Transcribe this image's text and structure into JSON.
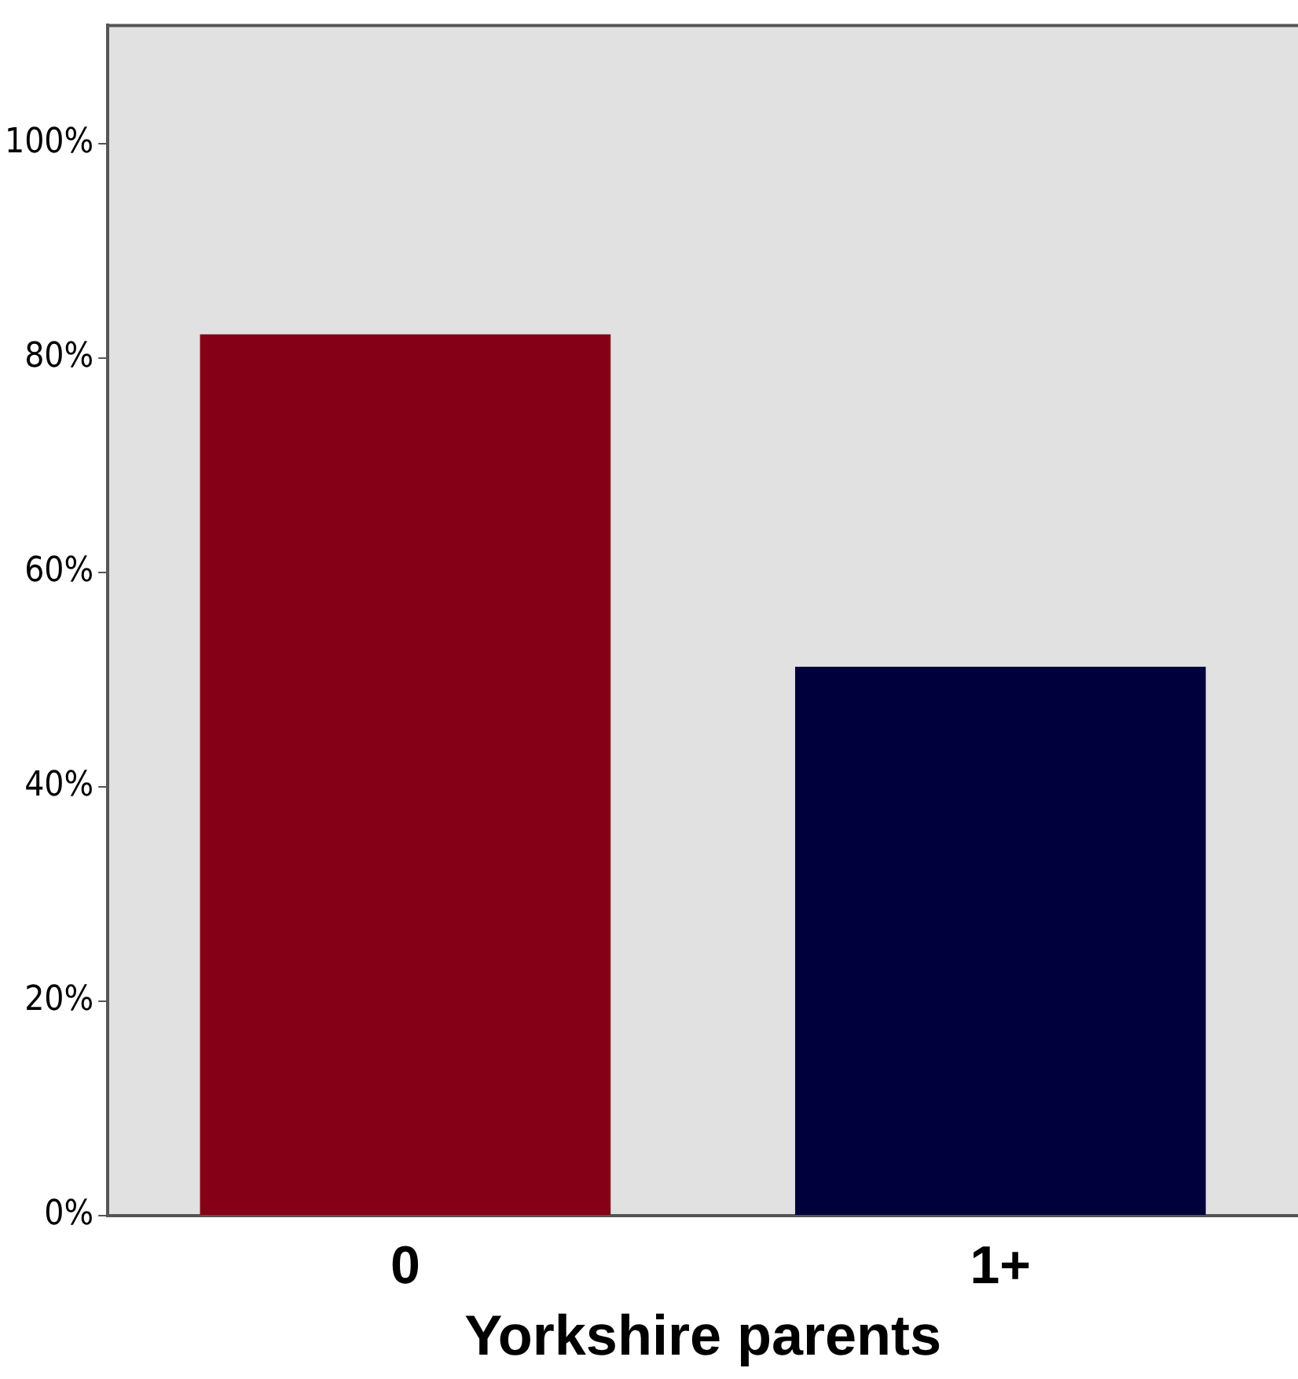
{
  "chart_data": {
    "type": "bar",
    "xlabel": "Yorkshire parents",
    "categories": [
      "0",
      "1+"
    ],
    "values": [
      82.2,
      51.2
    ],
    "colors": [
      "#850016",
      "#00003d"
    ],
    "ylim": [
      0,
      111
    ],
    "yticks": [
      {
        "value": 0,
        "label": "0%"
      },
      {
        "value": 20,
        "label": "20%"
      },
      {
        "value": 40,
        "label": "40%"
      },
      {
        "value": 60,
        "label": "60%"
      },
      {
        "value": 80,
        "label": "80%"
      },
      {
        "value": 100,
        "label": "100%"
      }
    ],
    "grid": false,
    "legend": false
  }
}
